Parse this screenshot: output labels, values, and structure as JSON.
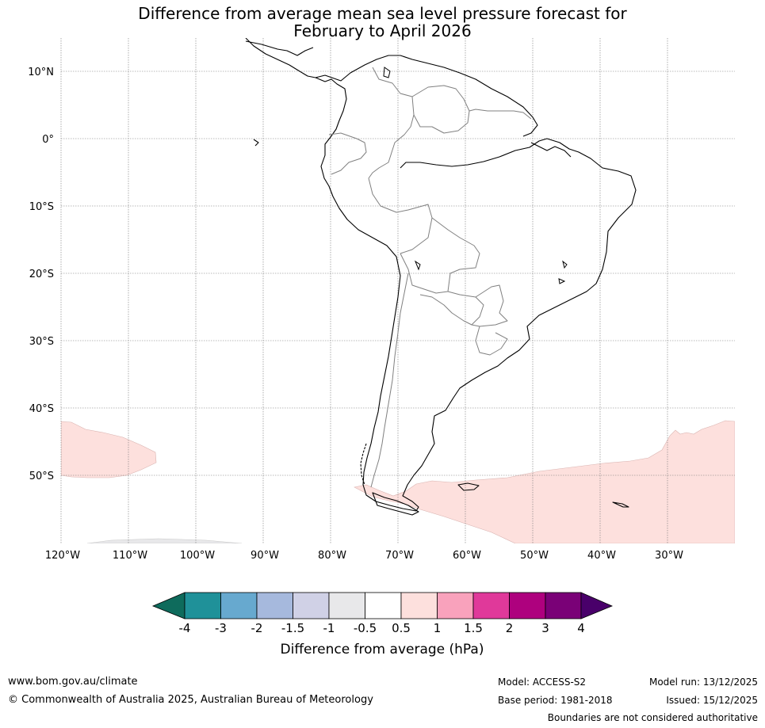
{
  "title_line1": "Difference from average mean sea level pressure forecast for",
  "title_line2": "February to April 2026",
  "map": {
    "lat_labels": [
      "10°N",
      "0°",
      "10°S",
      "20°S",
      "30°S",
      "40°S",
      "50°S"
    ],
    "lon_labels": [
      "120°W",
      "110°W",
      "100°W",
      "90°W",
      "80°W",
      "70°W",
      "60°W",
      "50°W",
      "40°W",
      "30°W"
    ],
    "lon_min": -120,
    "lon_max": -20,
    "lat_min": -60,
    "lat_max": 15
  },
  "colorbar": {
    "ticks": [
      "-4",
      "-3",
      "-2",
      "-1.5",
      "-1",
      "-0.5",
      "0.5",
      "1",
      "1.5",
      "2",
      "3",
      "4"
    ],
    "colors": [
      "#0e6b5c",
      "#1f9199",
      "#67a9cf",
      "#a6b9dd",
      "#d0d1e6",
      "#e8e8ea",
      "#ffffff",
      "#fde0dd",
      "#f9a2bc",
      "#e0399a",
      "#ae017e",
      "#7a0177",
      "#49006a"
    ],
    "label": "Difference from average (hPa)"
  },
  "footer": {
    "url": "www.bom.gov.au/climate",
    "copyright": "© Commonwealth of Australia 2025, Australian Bureau of Meteorology",
    "model": "Model: ACCESS-S2",
    "base_period": "Base period: 1981-2018",
    "model_run": "Model run: 13/12/2025",
    "issued": "Issued: 15/12/2025",
    "disclaimer": "Boundaries are not considered authoritative"
  }
}
